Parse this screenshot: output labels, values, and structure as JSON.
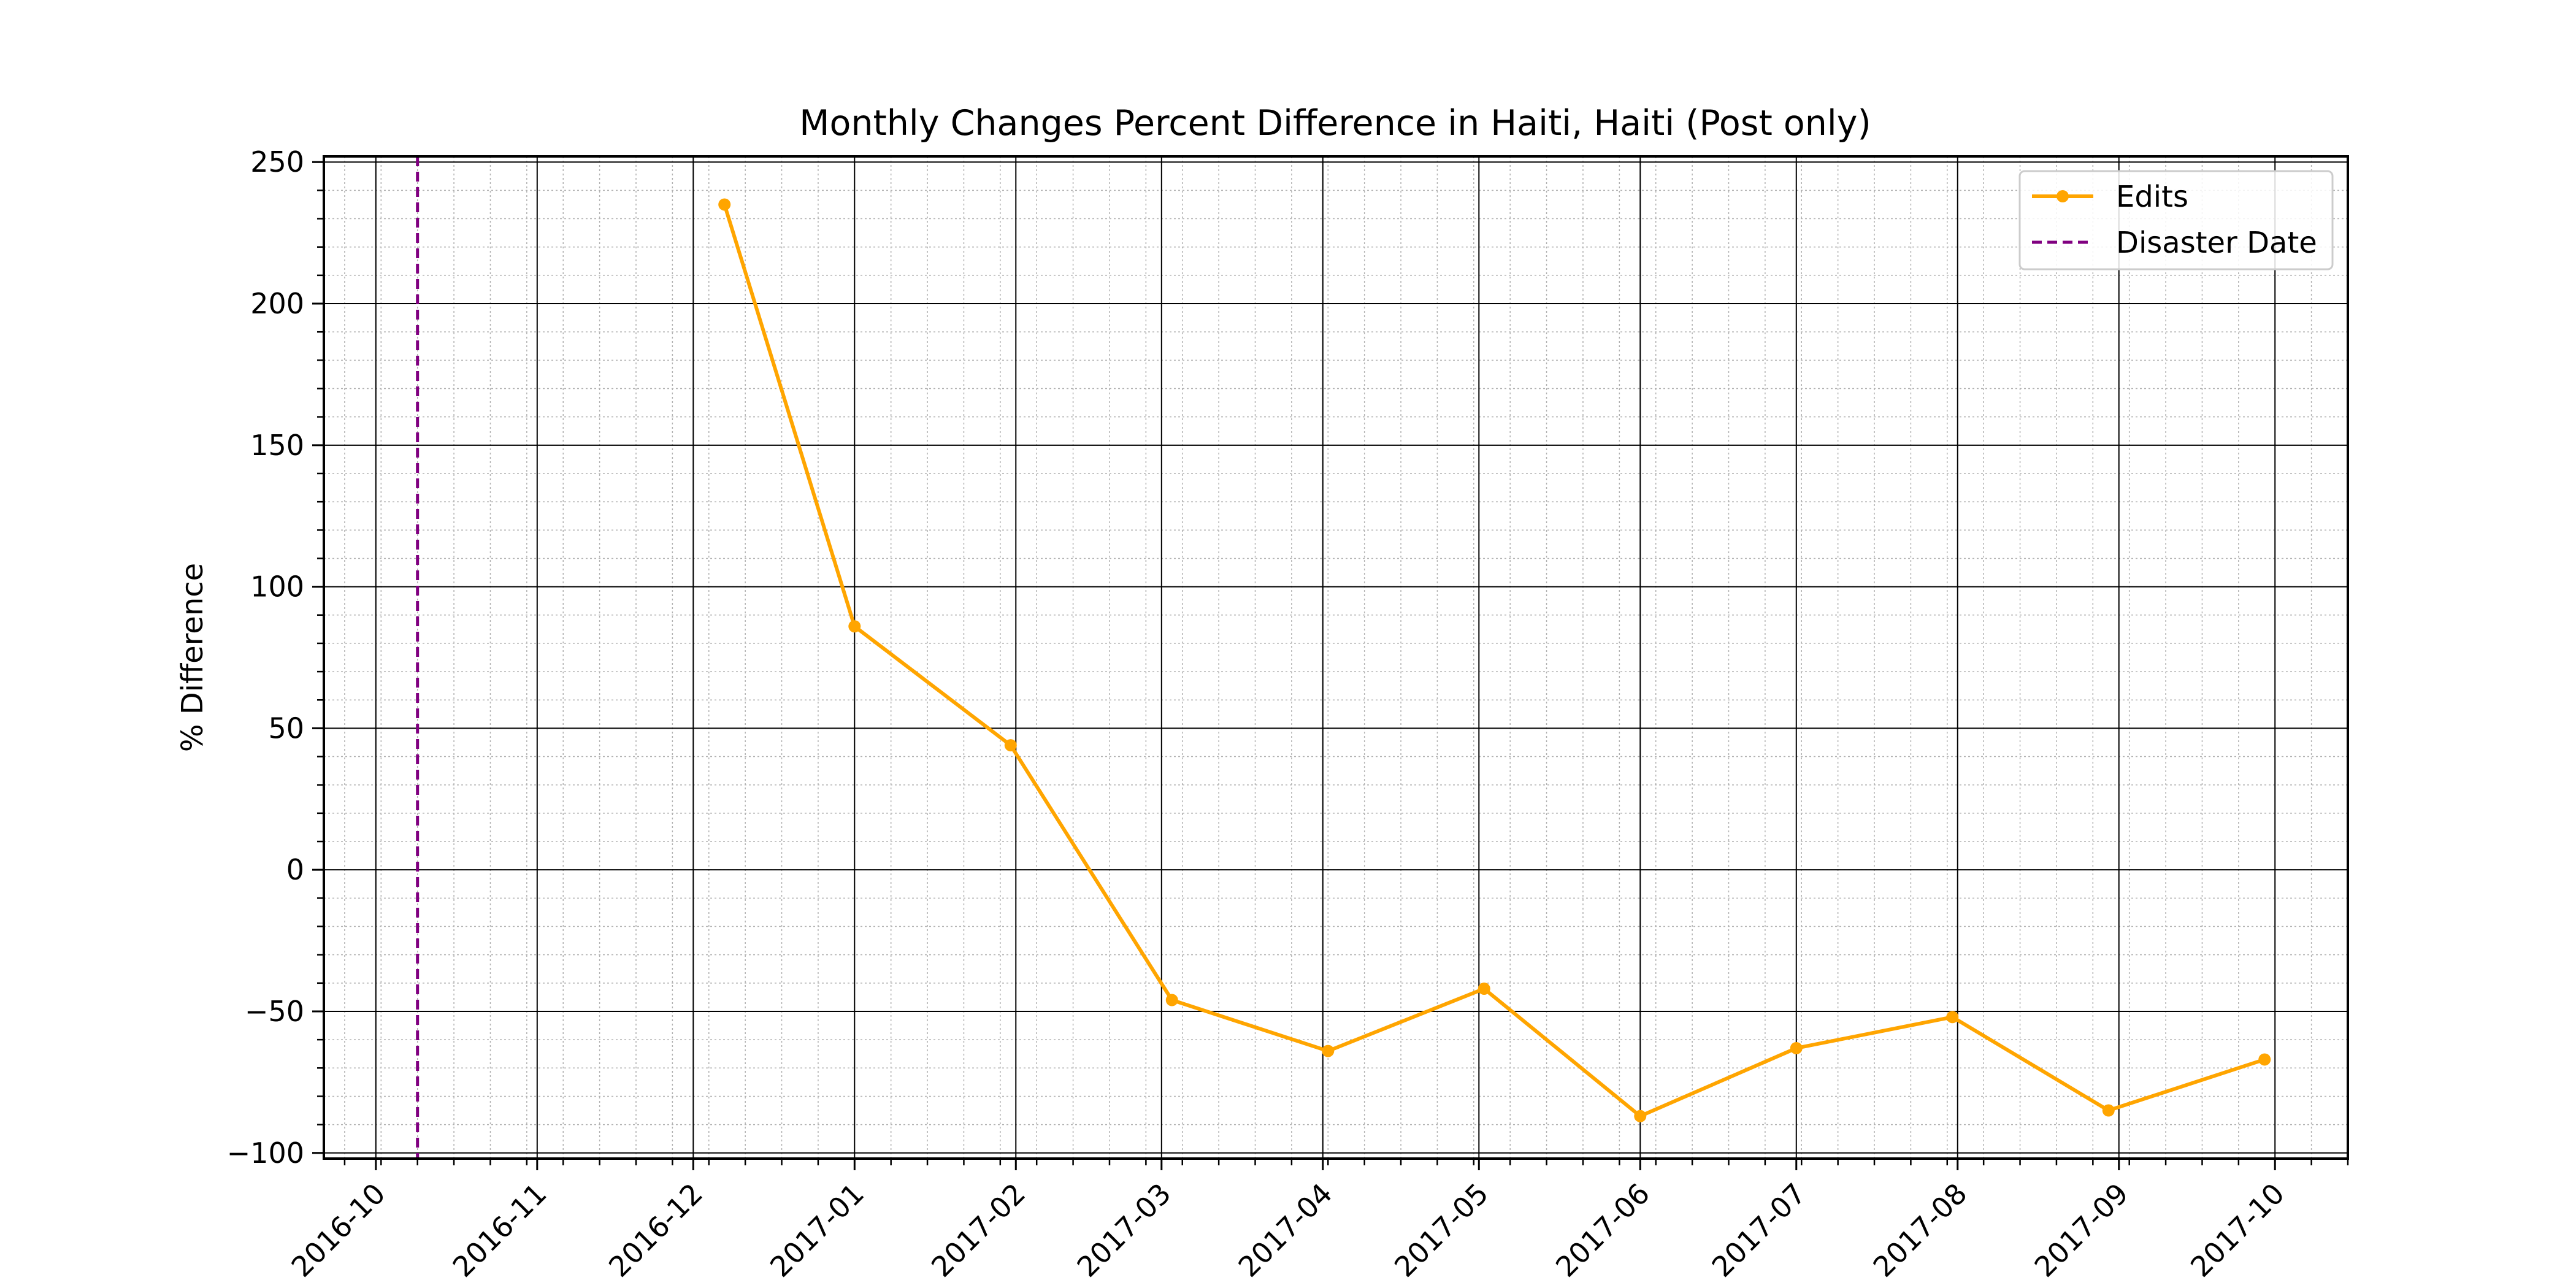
{
  "chart_data": {
    "type": "line",
    "title": "Monthly Changes Percent Difference in Haiti, Haiti (Post only)",
    "xlabel": "",
    "ylabel": "% Difference",
    "x_ticks": [
      "2016-10",
      "2016-11",
      "2016-12",
      "2017-01",
      "2017-02",
      "2017-03",
      "2017-04",
      "2017-05",
      "2017-06",
      "2017-07",
      "2017-08",
      "2017-09",
      "2017-10"
    ],
    "y_ticks": [
      250,
      200,
      150,
      100,
      50,
      0,
      -50,
      -100
    ],
    "xlim": [
      "2016-09-21",
      "2017-10-15"
    ],
    "ylim": [
      -102,
      252
    ],
    "grid": true,
    "minor_grid": true,
    "legend_position": "top-right",
    "series": [
      {
        "name": "Edits",
        "color": "#FFA500",
        "marker": "circle",
        "points": [
          {
            "x": "2016-12-07",
            "y": 235
          },
          {
            "x": "2017-01-01",
            "y": 86
          },
          {
            "x": "2017-01-31",
            "y": 44
          },
          {
            "x": "2017-03-03",
            "y": -46
          },
          {
            "x": "2017-04-02",
            "y": -64
          },
          {
            "x": "2017-05-02",
            "y": -42
          },
          {
            "x": "2017-06-01",
            "y": -87
          },
          {
            "x": "2017-07-01",
            "y": -63
          },
          {
            "x": "2017-07-31",
            "y": -52
          },
          {
            "x": "2017-08-30",
            "y": -85
          },
          {
            "x": "2017-09-29",
            "y": -67
          }
        ]
      }
    ],
    "vlines": [
      {
        "name": "Disaster Date",
        "x": "2016-10-09",
        "color": "#800080",
        "style": "dashed"
      }
    ]
  }
}
